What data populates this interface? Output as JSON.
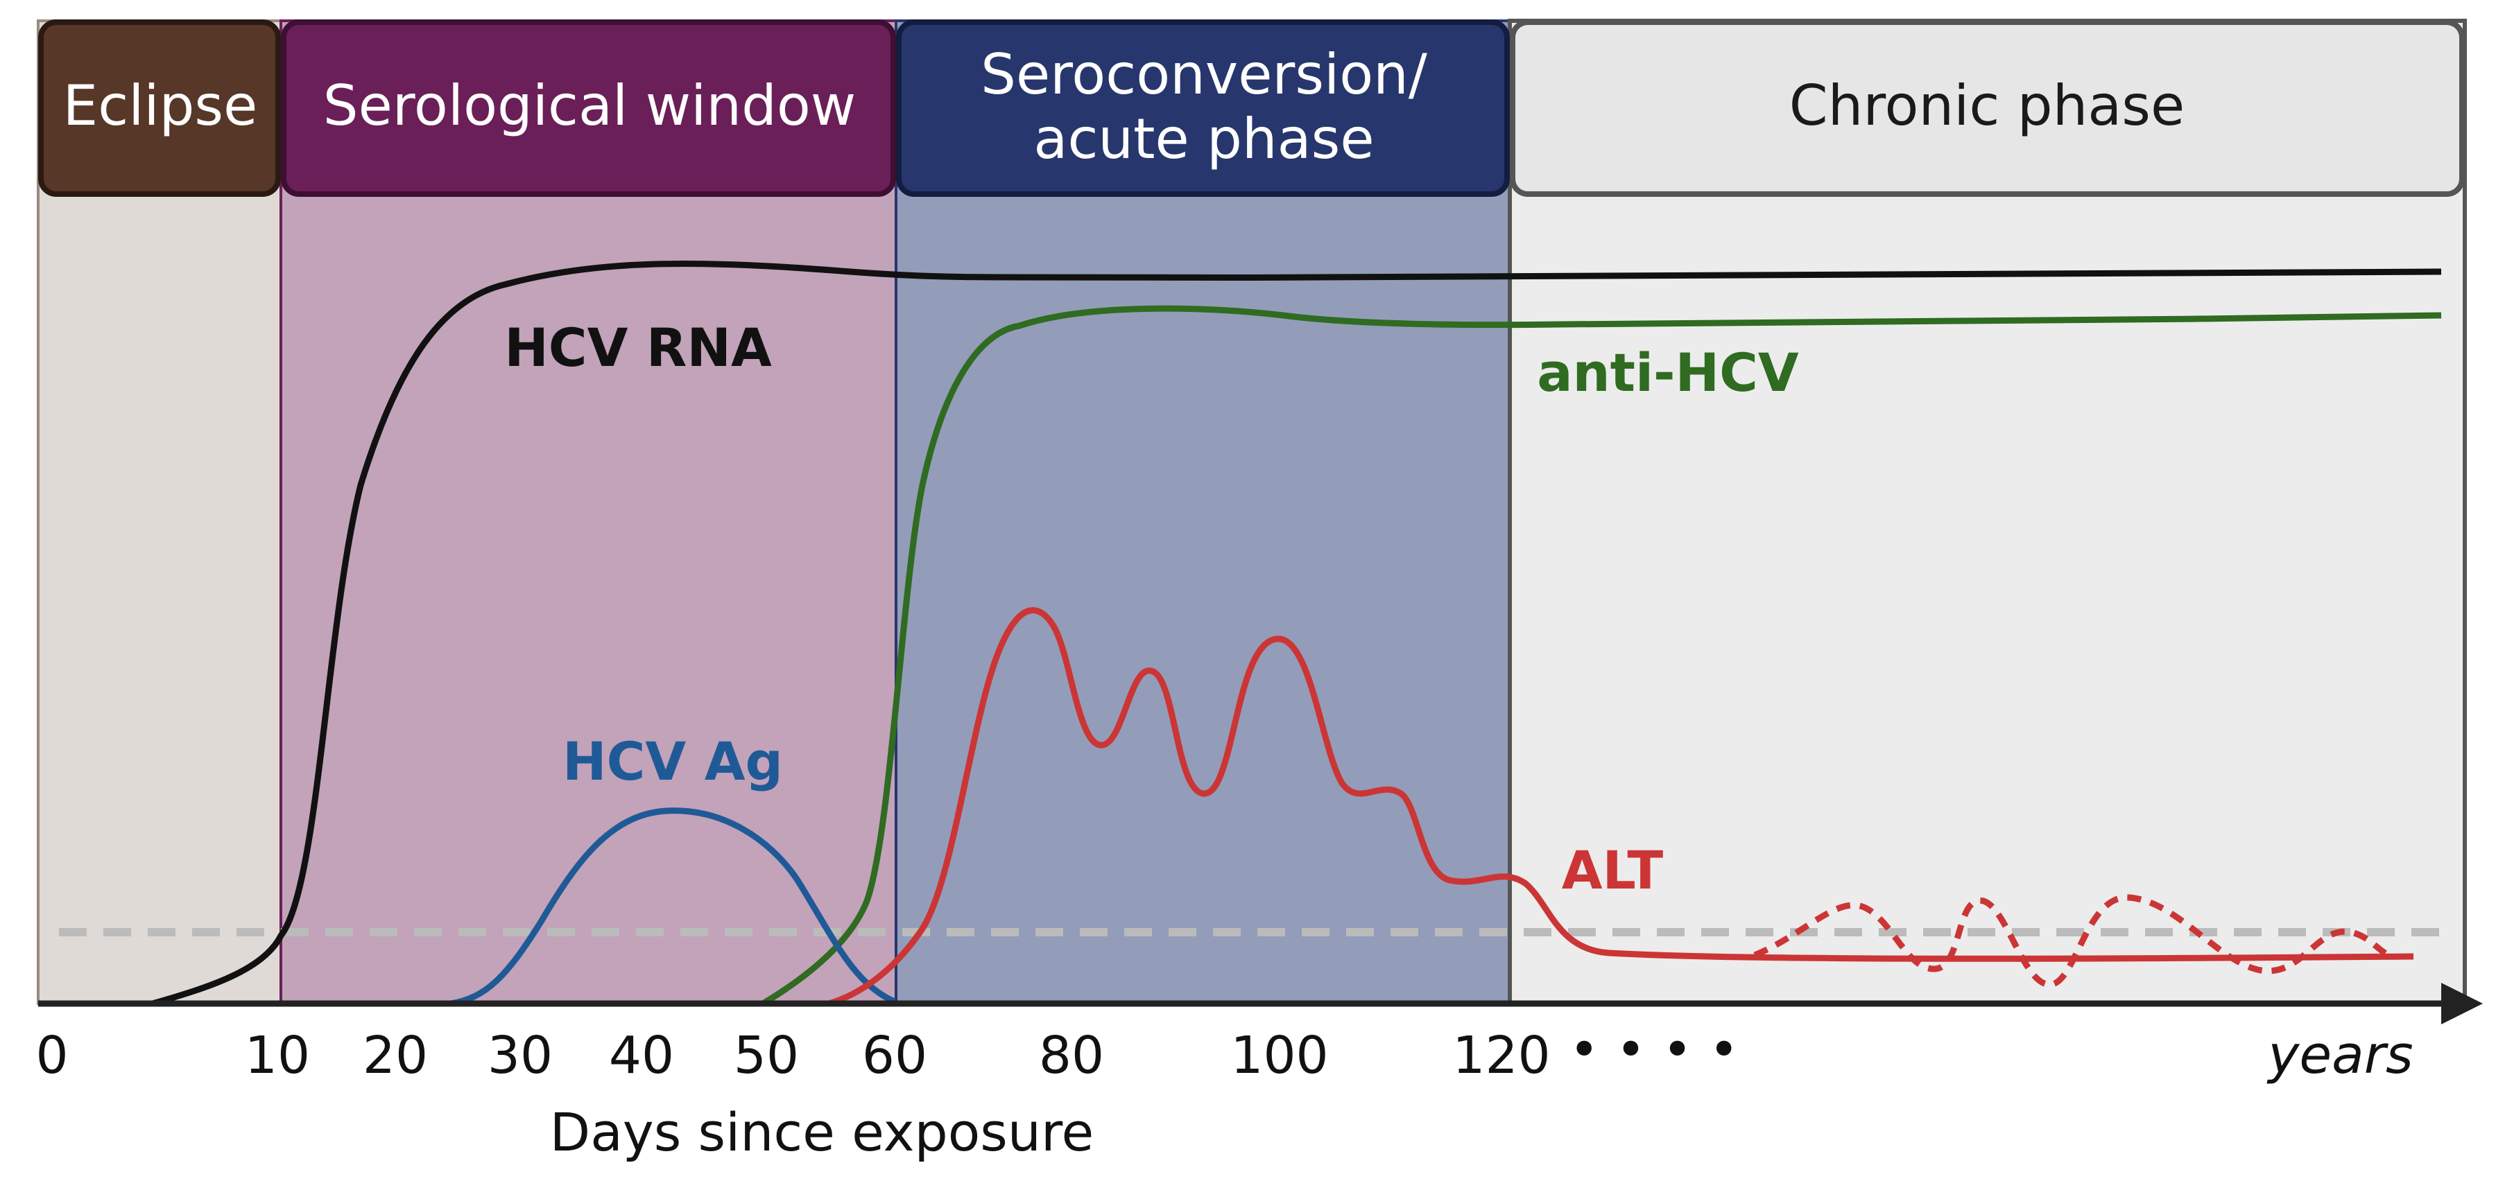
{
  "phases": {
    "eclipse": {
      "label": "Eclipse",
      "header_color": "#573728",
      "body_color": "#dfdad6"
    },
    "serological_window": {
      "label": "Serological window",
      "header_color": "#6a1f58",
      "body_color": "#c2a3b9"
    },
    "seroconversion": {
      "label_line1": "Seroconversion/",
      "label_line2": "acute phase",
      "header_color": "#27366d",
      "body_color": "#939db9"
    },
    "chronic": {
      "label": "Chronic phase",
      "header_color": "#e6e6e6",
      "body_color": "#ececec"
    }
  },
  "curves": {
    "hcv_rna": {
      "label": "HCV RNA",
      "color": "#111111"
    },
    "anti_hcv": {
      "label": "anti-HCV",
      "color": "#2f6b21"
    },
    "hcv_ag": {
      "label": "HCV Ag",
      "color": "#1f5a97"
    },
    "alt": {
      "label": "ALT",
      "color": "#cc3535"
    }
  },
  "axis": {
    "ticks": [
      "0",
      "10",
      "20",
      "30",
      "40",
      "50",
      "60",
      "80",
      "100",
      "120"
    ],
    "ellipsis": "• • • •",
    "years_label": "years",
    "title": "Days since exposure"
  }
}
